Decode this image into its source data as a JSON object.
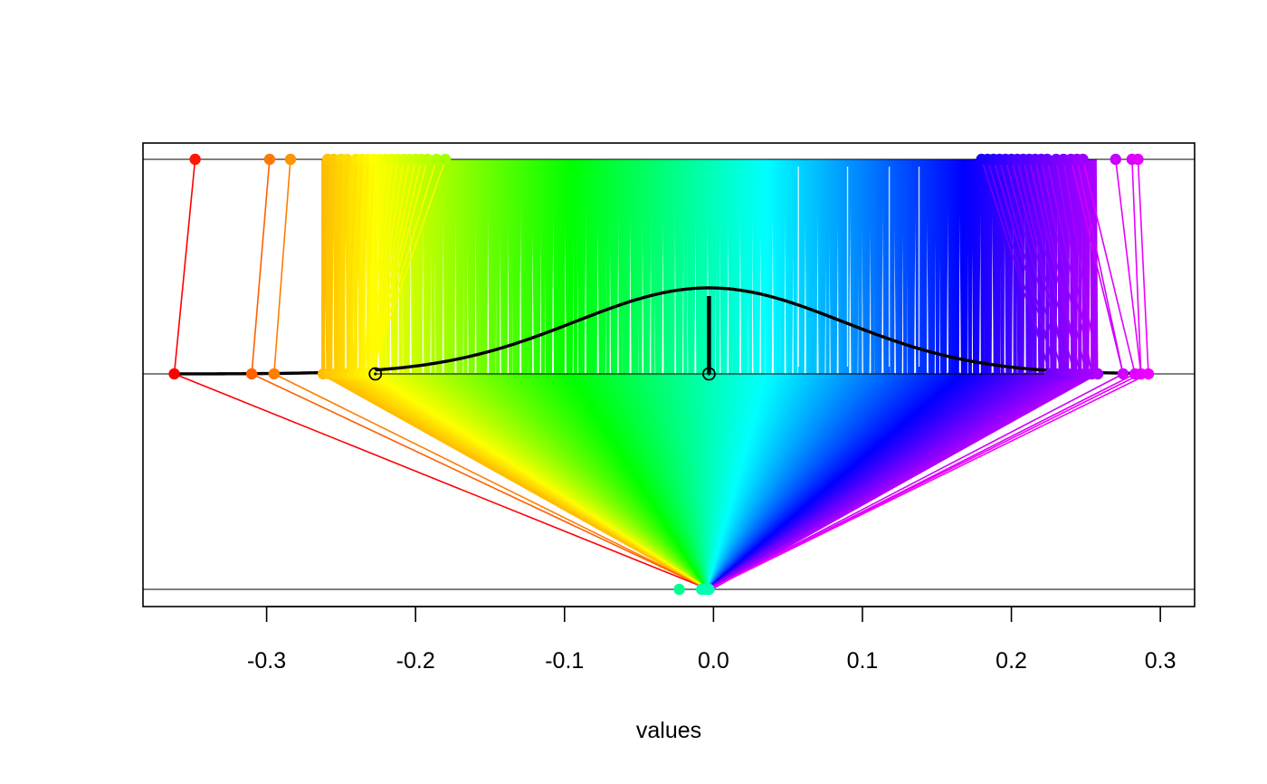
{
  "chart_data": {
    "type": "scatter",
    "title": "",
    "xlabel": "values",
    "ylabel": "",
    "xlim": [
      -0.383,
      0.323
    ],
    "x_ticks": [
      -0.3,
      -0.2,
      -0.1,
      0.0,
      0.1,
      0.2,
      0.3
    ],
    "x_tick_labels": [
      "-0.3",
      "-0.2",
      "-0.1",
      "0.0",
      "0.1",
      "0.2",
      "0.3"
    ],
    "rows": [
      "top",
      "middle",
      "bottom"
    ],
    "grid": false,
    "legend": "none",
    "color_scale": "rainbow (red to magenta)",
    "top_row_points": [
      -0.348,
      -0.298,
      -0.284,
      -0.259,
      -0.255,
      -0.25,
      -0.246,
      -0.24,
      -0.236,
      -0.232,
      -0.228,
      -0.224,
      -0.22,
      -0.216,
      -0.212,
      -0.208,
      -0.204,
      -0.2,
      -0.196,
      -0.192,
      -0.186,
      -0.18,
      0.18,
      0.184,
      0.188,
      0.192,
      0.196,
      0.2,
      0.204,
      0.208,
      0.212,
      0.216,
      0.22,
      0.224,
      0.23,
      0.235,
      0.24,
      0.244,
      0.248,
      0.27,
      0.281,
      0.285
    ],
    "middle_row_points": [
      -0.362,
      -0.31,
      -0.295,
      -0.262,
      -0.258,
      -0.254,
      -0.25,
      -0.246,
      -0.242,
      -0.238,
      -0.234,
      -0.23,
      0.226,
      0.23,
      0.234,
      0.238,
      0.242,
      0.246,
      0.25,
      0.254,
      0.258,
      0.275,
      0.283,
      0.287,
      0.292
    ],
    "bottom_row_points": [
      -0.023,
      -0.008,
      -0.006,
      -0.004,
      -0.003
    ],
    "open_markers": [
      -0.227,
      -0.003
    ],
    "mean_line_x": -0.003,
    "density_curve": {
      "mean": -0.003,
      "sd": 0.09
    }
  }
}
